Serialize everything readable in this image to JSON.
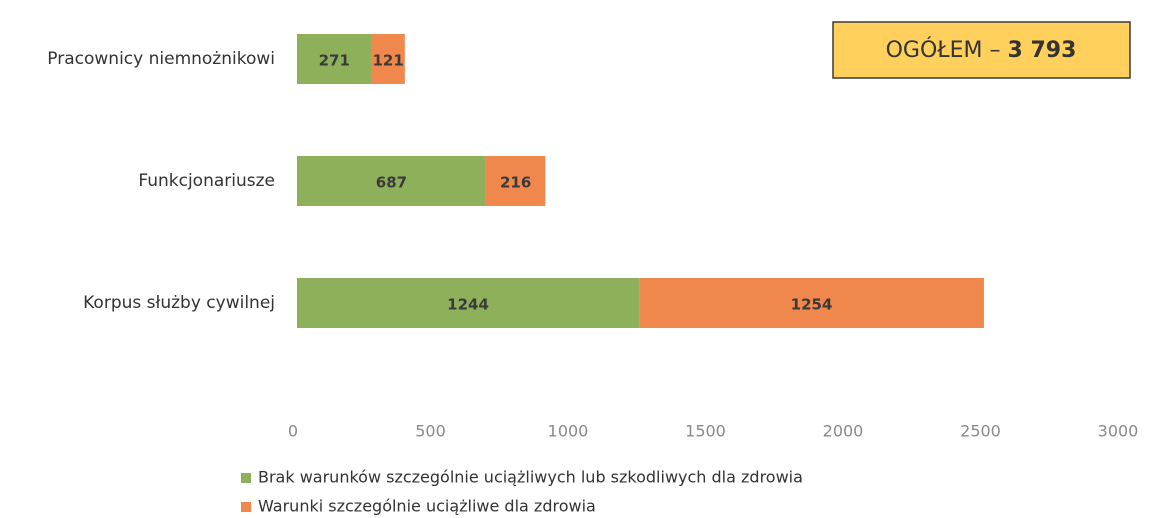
{
  "chart_data": {
    "type": "stacked_barh",
    "categories": [
      "Pracownicy niemnożnikowi",
      "Funkcjonariusze",
      "Korpus służby cywilnej"
    ],
    "series": [
      {
        "name": "Brak warunków szczególnie uciążliwych lub szkodliwych dla zdrowia",
        "color": "#8fb05a",
        "values": [
          271,
          687,
          1244
        ]
      },
      {
        "name": "Warunki szczególnie uciążliwe dla zdrowia",
        "color": "#f0874c",
        "values": [
          121,
          216,
          1254
        ]
      }
    ],
    "xlim": [
      0,
      3000
    ],
    "xticks": [
      0,
      500,
      1000,
      1500,
      2000,
      2500,
      3000
    ],
    "annotation": [
      "OGÓŁEM –",
      "3 793"
    ],
    "grid": false,
    "legend": "bottom"
  }
}
